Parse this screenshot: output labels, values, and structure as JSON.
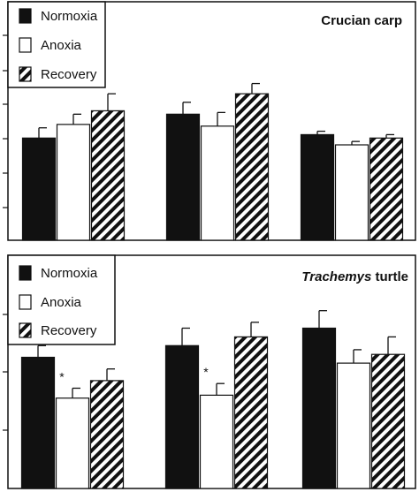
{
  "chart_data": [
    {
      "type": "bar",
      "title": "Crucian carp",
      "title_parts": [
        {
          "text": "Crucian carp",
          "italic": false
        }
      ],
      "categories": [
        "",
        "",
        ""
      ],
      "ylim": [
        0,
        7
      ],
      "series": [
        {
          "name": "Normoxia",
          "pattern": "solid-black",
          "values": [
            3.0,
            3.7,
            3.1
          ],
          "errors": [
            0.3,
            0.35,
            0.1
          ]
        },
        {
          "name": "Anoxia",
          "pattern": "white",
          "values": [
            3.4,
            3.35,
            2.8
          ],
          "errors": [
            0.3,
            0.4,
            0.1
          ]
        },
        {
          "name": "Recovery",
          "pattern": "diagonal-hatch",
          "values": [
            3.8,
            4.3,
            3.0
          ],
          "errors": [
            0.5,
            0.3,
            0.1
          ]
        }
      ],
      "significance": [],
      "legend_position": "top-left",
      "grid": false
    },
    {
      "type": "bar",
      "title": "Trachemys turtle",
      "title_parts": [
        {
          "text": "Trachemys",
          "italic": true
        },
        {
          "text": " turtle",
          "italic": false
        }
      ],
      "categories": [
        "",
        "",
        ""
      ],
      "ylim": [
        0,
        4
      ],
      "series": [
        {
          "name": "Normoxia",
          "pattern": "solid-black",
          "values": [
            2.25,
            2.45,
            2.75
          ],
          "errors": [
            0.2,
            0.3,
            0.3
          ]
        },
        {
          "name": "Anoxia",
          "pattern": "white",
          "values": [
            1.55,
            1.6,
            2.15
          ],
          "errors": [
            0.17,
            0.2,
            0.23
          ]
        },
        {
          "name": "Recovery",
          "pattern": "diagonal-hatch",
          "values": [
            1.85,
            2.6,
            2.3
          ],
          "errors": [
            0.2,
            0.25,
            0.3
          ]
        }
      ],
      "significance": [
        {
          "series": "Anoxia",
          "category_index": 0,
          "label": "*"
        },
        {
          "series": "Anoxia",
          "category_index": 1,
          "label": "*"
        }
      ],
      "legend_position": "top-left",
      "grid": false
    }
  ]
}
